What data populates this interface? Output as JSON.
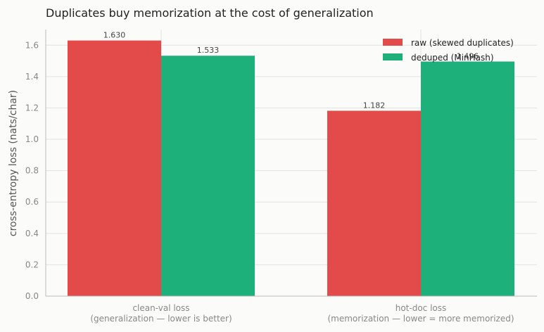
{
  "chart_data": {
    "type": "bar",
    "title": "Duplicates buy memorization at the cost of generalization",
    "ylabel": "cross-entropy loss (nats/char)",
    "xlabel": "",
    "ylim": [
      0,
      1.7
    ],
    "yticks": [
      "0.0",
      "0.2",
      "0.4",
      "0.6",
      "0.8",
      "1.0",
      "1.2",
      "1.4",
      "1.6"
    ],
    "grid": true,
    "legend_position": "top-right",
    "categories": [
      [
        "clean-val loss",
        "(generalization — lower is better)"
      ],
      [
        "hot-doc loss",
        "(memorization — lower = more memorized)"
      ]
    ],
    "series": [
      {
        "name": "raw (skewed duplicates)",
        "color": "#e34a4a",
        "values": [
          1.63,
          1.182
        ],
        "labels": [
          "1.630",
          "1.182"
        ]
      },
      {
        "name": "deduped (MinHash)",
        "color": "#1db07b",
        "values": [
          1.533,
          1.496
        ],
        "labels": [
          "1.533",
          "1.496"
        ]
      }
    ]
  }
}
